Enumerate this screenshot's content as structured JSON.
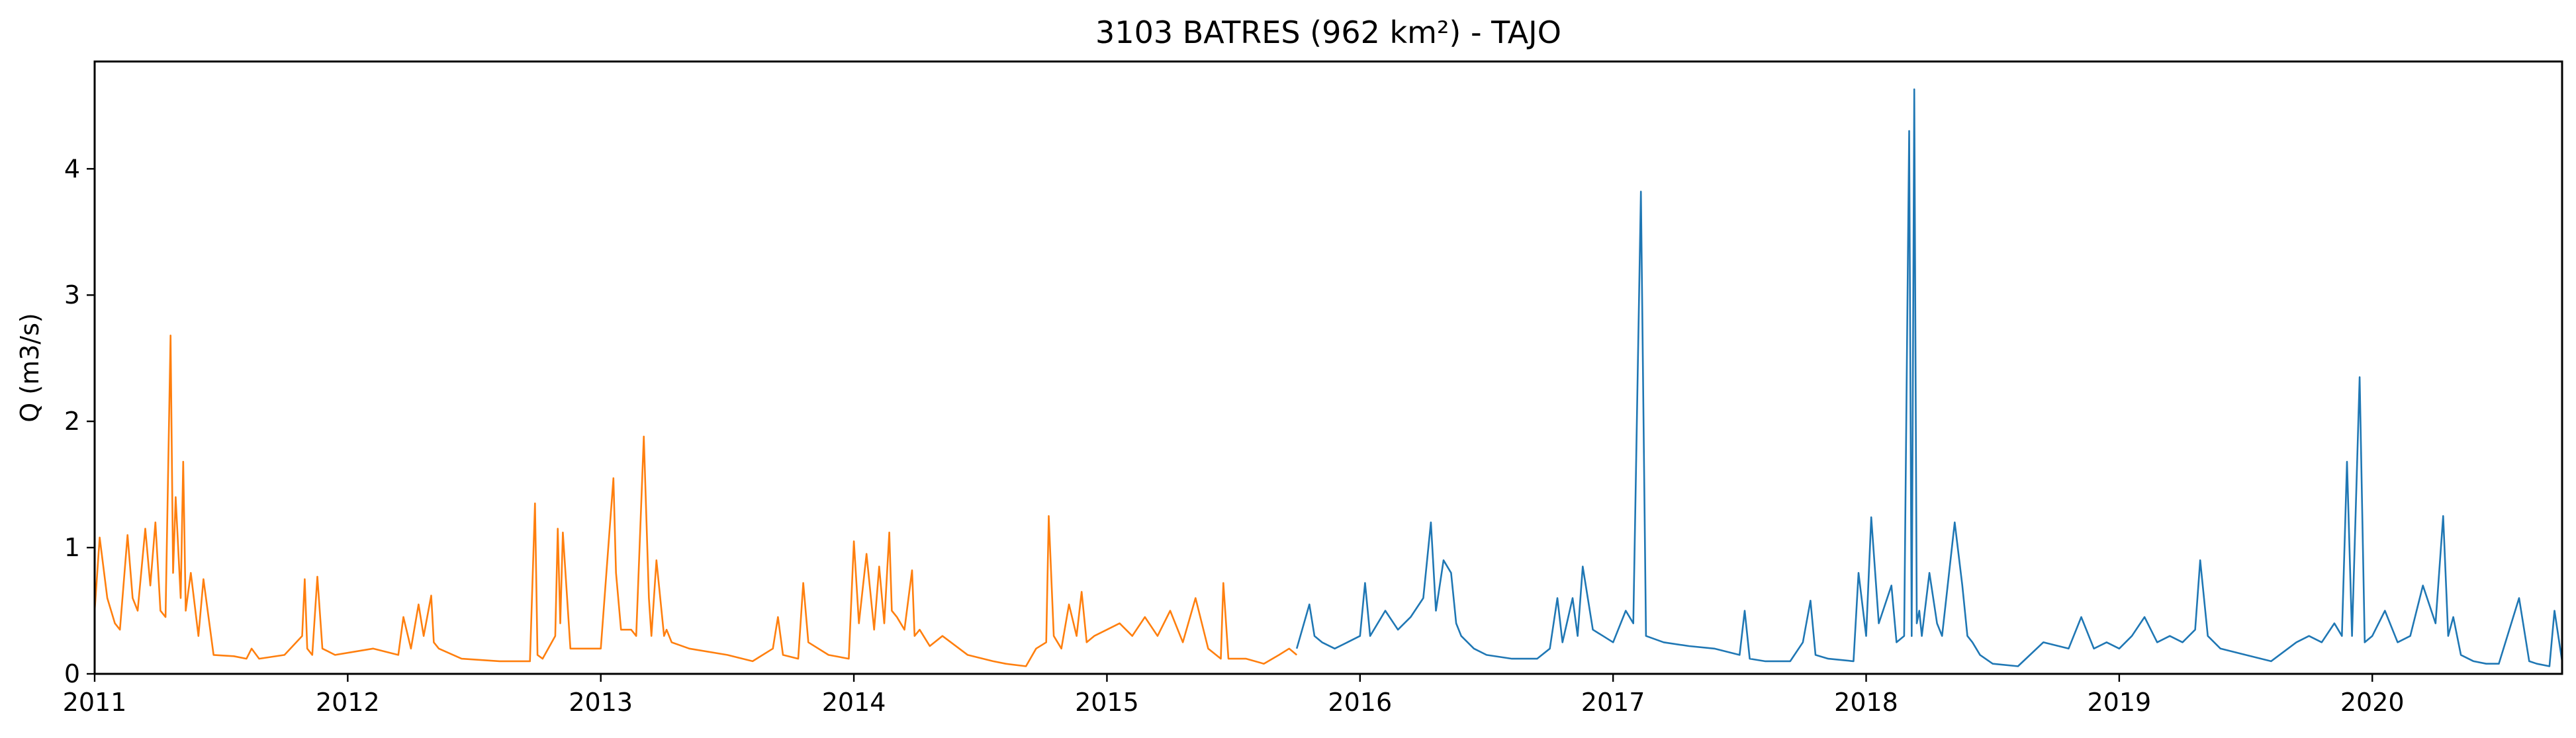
{
  "chart_data": {
    "type": "line",
    "title": "3103 BATRES (962 km²) - TAJO",
    "xlabel": "",
    "ylabel": "Q (m3/s)",
    "x_tick_labels": [
      "2011",
      "2012",
      "2013",
      "2014",
      "2015",
      "2016",
      "2017",
      "2018",
      "2019",
      "2020"
    ],
    "y_tick_labels": [
      "0",
      "1",
      "2",
      "3",
      "4"
    ],
    "xlim": [
      2011.0,
      2020.75
    ],
    "ylim": [
      0,
      4.85
    ],
    "grid": false,
    "legend": "none",
    "series": [
      {
        "color": "#ff7f0e",
        "x": [
          2011.0,
          2011.02,
          2011.05,
          2011.08,
          2011.1,
          2011.13,
          2011.15,
          2011.17,
          2011.2,
          2011.22,
          2011.24,
          2011.26,
          2011.28,
          2011.3,
          2011.31,
          2011.32,
          2011.34,
          2011.35,
          2011.36,
          2011.38,
          2011.41,
          2011.43,
          2011.47,
          2011.55,
          2011.6,
          2011.62,
          2011.65,
          2011.75,
          2011.82,
          2011.83,
          2011.84,
          2011.86,
          2011.88,
          2011.9,
          2011.92,
          2011.95,
          2012.1,
          2012.2,
          2012.22,
          2012.25,
          2012.28,
          2012.3,
          2012.33,
          2012.34,
          2012.36,
          2012.45,
          2012.6,
          2012.72,
          2012.74,
          2012.75,
          2012.77,
          2012.82,
          2012.83,
          2012.84,
          2012.85,
          2012.88,
          2013.0,
          2013.05,
          2013.06,
          2013.08,
          2013.12,
          2013.14,
          2013.17,
          2013.19,
          2013.2,
          2013.22,
          2013.25,
          2013.26,
          2013.28,
          2013.35,
          2013.5,
          2013.6,
          2013.68,
          2013.7,
          2013.72,
          2013.78,
          2013.8,
          2013.82,
          2013.9,
          2013.98,
          2014.0,
          2014.02,
          2014.05,
          2014.08,
          2014.1,
          2014.12,
          2014.14,
          2014.15,
          2014.17,
          2014.2,
          2014.23,
          2014.24,
          2014.26,
          2014.3,
          2014.35,
          2014.45,
          2014.55,
          2014.6,
          2014.68,
          2014.72,
          2014.76,
          2014.77,
          2014.79,
          2014.82,
          2014.85,
          2014.88,
          2014.9,
          2014.92,
          2014.95,
          2015.0,
          2015.05,
          2015.1,
          2015.15,
          2015.2,
          2015.25,
          2015.3,
          2015.35,
          2015.4,
          2015.45,
          2015.46,
          2015.48,
          2015.55,
          2015.62,
          2015.68,
          2015.72,
          2015.75
        ],
        "y": [
          0.5,
          1.08,
          0.6,
          0.4,
          0.35,
          1.1,
          0.6,
          0.5,
          1.15,
          0.7,
          1.2,
          0.5,
          0.45,
          2.68,
          0.8,
          1.4,
          0.6,
          1.68,
          0.5,
          0.8,
          0.3,
          0.75,
          0.15,
          0.14,
          0.12,
          0.2,
          0.12,
          0.15,
          0.3,
          0.75,
          0.2,
          0.15,
          0.77,
          0.2,
          0.18,
          0.15,
          0.2,
          0.15,
          0.45,
          0.2,
          0.55,
          0.3,
          0.62,
          0.25,
          0.2,
          0.12,
          0.1,
          0.1,
          1.35,
          0.15,
          0.12,
          0.3,
          1.15,
          0.4,
          1.12,
          0.2,
          0.2,
          1.55,
          0.8,
          0.35,
          0.35,
          0.3,
          1.88,
          0.6,
          0.3,
          0.9,
          0.3,
          0.35,
          0.25,
          0.2,
          0.15,
          0.1,
          0.2,
          0.45,
          0.15,
          0.12,
          0.72,
          0.25,
          0.15,
          0.12,
          1.05,
          0.4,
          0.95,
          0.35,
          0.85,
          0.4,
          1.12,
          0.5,
          0.45,
          0.35,
          0.82,
          0.3,
          0.35,
          0.22,
          0.3,
          0.15,
          0.1,
          0.08,
          0.06,
          0.2,
          0.25,
          1.25,
          0.3,
          0.2,
          0.55,
          0.3,
          0.65,
          0.25,
          0.3,
          0.35,
          0.4,
          0.3,
          0.45,
          0.3,
          0.5,
          0.25,
          0.6,
          0.2,
          0.12,
          0.72,
          0.12,
          0.12,
          0.08,
          0.15,
          0.2,
          0.15
        ]
      },
      {
        "color": "#1f77b4",
        "x": [
          2015.75,
          2015.8,
          2015.82,
          2015.85,
          2015.9,
          2015.95,
          2016.0,
          2016.02,
          2016.04,
          2016.1,
          2016.15,
          2016.2,
          2016.25,
          2016.28,
          2016.3,
          2016.33,
          2016.36,
          2016.38,
          2016.4,
          2016.45,
          2016.5,
          2016.6,
          2016.7,
          2016.75,
          2016.78,
          2016.8,
          2016.84,
          2016.86,
          2016.88,
          2016.92,
          2016.96,
          2017.0,
          2017.05,
          2017.08,
          2017.11,
          2017.13,
          2017.2,
          2017.3,
          2017.4,
          2017.5,
          2017.52,
          2017.54,
          2017.6,
          2017.7,
          2017.75,
          2017.78,
          2017.8,
          2017.85,
          2017.95,
          2017.97,
          2018.0,
          2018.02,
          2018.05,
          2018.1,
          2018.12,
          2018.15,
          2018.17,
          2018.18,
          2018.19,
          2018.2,
          2018.21,
          2018.22,
          2018.25,
          2018.28,
          2018.3,
          2018.35,
          2018.38,
          2018.4,
          2018.42,
          2018.45,
          2018.5,
          2018.6,
          2018.7,
          2018.8,
          2018.85,
          2018.9,
          2018.95,
          2019.0,
          2019.05,
          2019.1,
          2019.15,
          2019.2,
          2019.25,
          2019.3,
          2019.32,
          2019.35,
          2019.4,
          2019.5,
          2019.6,
          2019.7,
          2019.75,
          2019.8,
          2019.85,
          2019.88,
          2019.9,
          2019.92,
          2019.95,
          2019.97,
          2020.0,
          2020.05,
          2020.1,
          2020.15,
          2020.2,
          2020.25,
          2020.28,
          2020.3,
          2020.32,
          2020.35,
          2020.4,
          2020.45,
          2020.5,
          2020.58,
          2020.62,
          2020.65,
          2020.7,
          2020.72,
          2020.75
        ],
        "y": [
          0.2,
          0.55,
          0.3,
          0.25,
          0.2,
          0.25,
          0.3,
          0.72,
          0.3,
          0.5,
          0.35,
          0.45,
          0.6,
          1.2,
          0.5,
          0.9,
          0.8,
          0.4,
          0.3,
          0.2,
          0.15,
          0.12,
          0.12,
          0.2,
          0.6,
          0.25,
          0.6,
          0.3,
          0.85,
          0.35,
          0.3,
          0.25,
          0.5,
          0.4,
          3.82,
          0.3,
          0.25,
          0.22,
          0.2,
          0.15,
          0.5,
          0.12,
          0.1,
          0.1,
          0.25,
          0.58,
          0.15,
          0.12,
          0.1,
          0.8,
          0.3,
          1.24,
          0.4,
          0.7,
          0.25,
          0.3,
          4.3,
          0.3,
          4.63,
          0.4,
          0.5,
          0.3,
          0.8,
          0.4,
          0.3,
          1.2,
          0.7,
          0.3,
          0.25,
          0.15,
          0.08,
          0.06,
          0.25,
          0.2,
          0.45,
          0.2,
          0.25,
          0.2,
          0.3,
          0.45,
          0.25,
          0.3,
          0.25,
          0.35,
          0.9,
          0.3,
          0.2,
          0.15,
          0.1,
          0.25,
          0.3,
          0.25,
          0.4,
          0.3,
          1.68,
          0.3,
          2.35,
          0.25,
          0.3,
          0.5,
          0.25,
          0.3,
          0.7,
          0.4,
          1.25,
          0.3,
          0.45,
          0.15,
          0.1,
          0.08,
          0.08,
          0.6,
          0.1,
          0.08,
          0.06,
          0.5,
          0.1
        ]
      }
    ]
  }
}
